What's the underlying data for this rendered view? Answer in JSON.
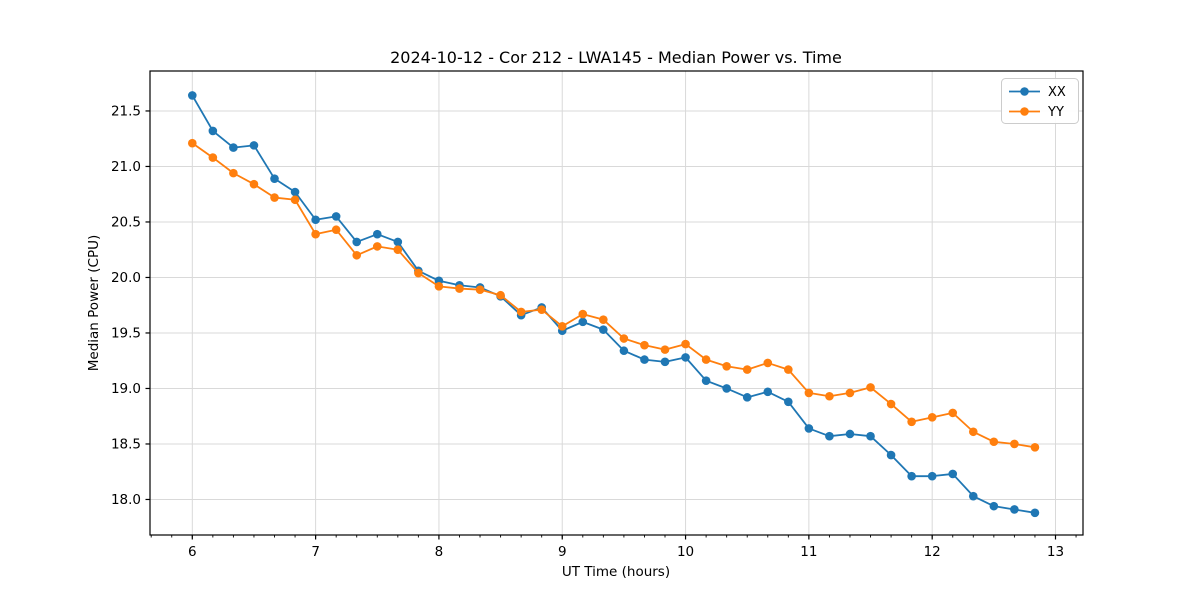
{
  "chart_data": {
    "type": "line",
    "title": "2024-10-12 - Cor 212 - LWA145 - Median Power vs. Time",
    "xlabel": "UT Time (hours)",
    "ylabel": "Median Power (CPU)",
    "xlim": [
      5.657,
      13.223
    ],
    "ylim": [
      17.68,
      21.86
    ],
    "x_ticks": [
      6,
      7,
      8,
      9,
      10,
      11,
      12,
      13
    ],
    "y_ticks": [
      18.0,
      18.5,
      19.0,
      19.5,
      20.0,
      20.5,
      21.0,
      21.5
    ],
    "x_minor_tick_step": 0.166667,
    "grid": true,
    "grid_color": "#d9d9d9",
    "legend_position": "upper right",
    "x": [
      6.0,
      6.1667,
      6.3333,
      6.5,
      6.6667,
      6.8333,
      7.0,
      7.1667,
      7.3333,
      7.5,
      7.6667,
      7.8333,
      8.0,
      8.1667,
      8.3333,
      8.5,
      8.6667,
      8.8333,
      9.0,
      9.1667,
      9.3333,
      9.5,
      9.6667,
      9.8333,
      10.0,
      10.1667,
      10.3333,
      10.5,
      10.6667,
      10.8333,
      11.0,
      11.1667,
      11.3333,
      11.5,
      11.6667,
      11.8333,
      12.0,
      12.1667,
      12.3333,
      12.5,
      12.6667,
      12.8333
    ],
    "series": [
      {
        "name": "XX",
        "color": "#1f77b4",
        "values": [
          21.64,
          21.32,
          21.17,
          21.19,
          20.89,
          20.77,
          20.52,
          20.55,
          20.32,
          20.39,
          20.32,
          20.06,
          19.97,
          19.93,
          19.91,
          19.83,
          19.66,
          19.73,
          19.52,
          19.6,
          19.53,
          19.34,
          19.26,
          19.24,
          19.28,
          19.07,
          19.0,
          18.92,
          18.97,
          18.88,
          18.64,
          18.57,
          18.59,
          18.57,
          18.4,
          18.21,
          18.21,
          18.23,
          18.03,
          17.94,
          17.91,
          17.88
        ]
      },
      {
        "name": "YY",
        "color": "#ff7f0e",
        "values": [
          21.21,
          21.08,
          20.94,
          20.84,
          20.72,
          20.7,
          20.39,
          20.43,
          20.2,
          20.28,
          20.25,
          20.04,
          19.92,
          19.9,
          19.89,
          19.84,
          19.69,
          19.71,
          19.56,
          19.67,
          19.62,
          19.45,
          19.39,
          19.35,
          19.4,
          19.26,
          19.2,
          19.17,
          19.23,
          19.17,
          18.96,
          18.93,
          18.96,
          19.01,
          18.86,
          18.7,
          18.74,
          18.78,
          18.61,
          18.52,
          18.5,
          18.47
        ]
      }
    ]
  }
}
